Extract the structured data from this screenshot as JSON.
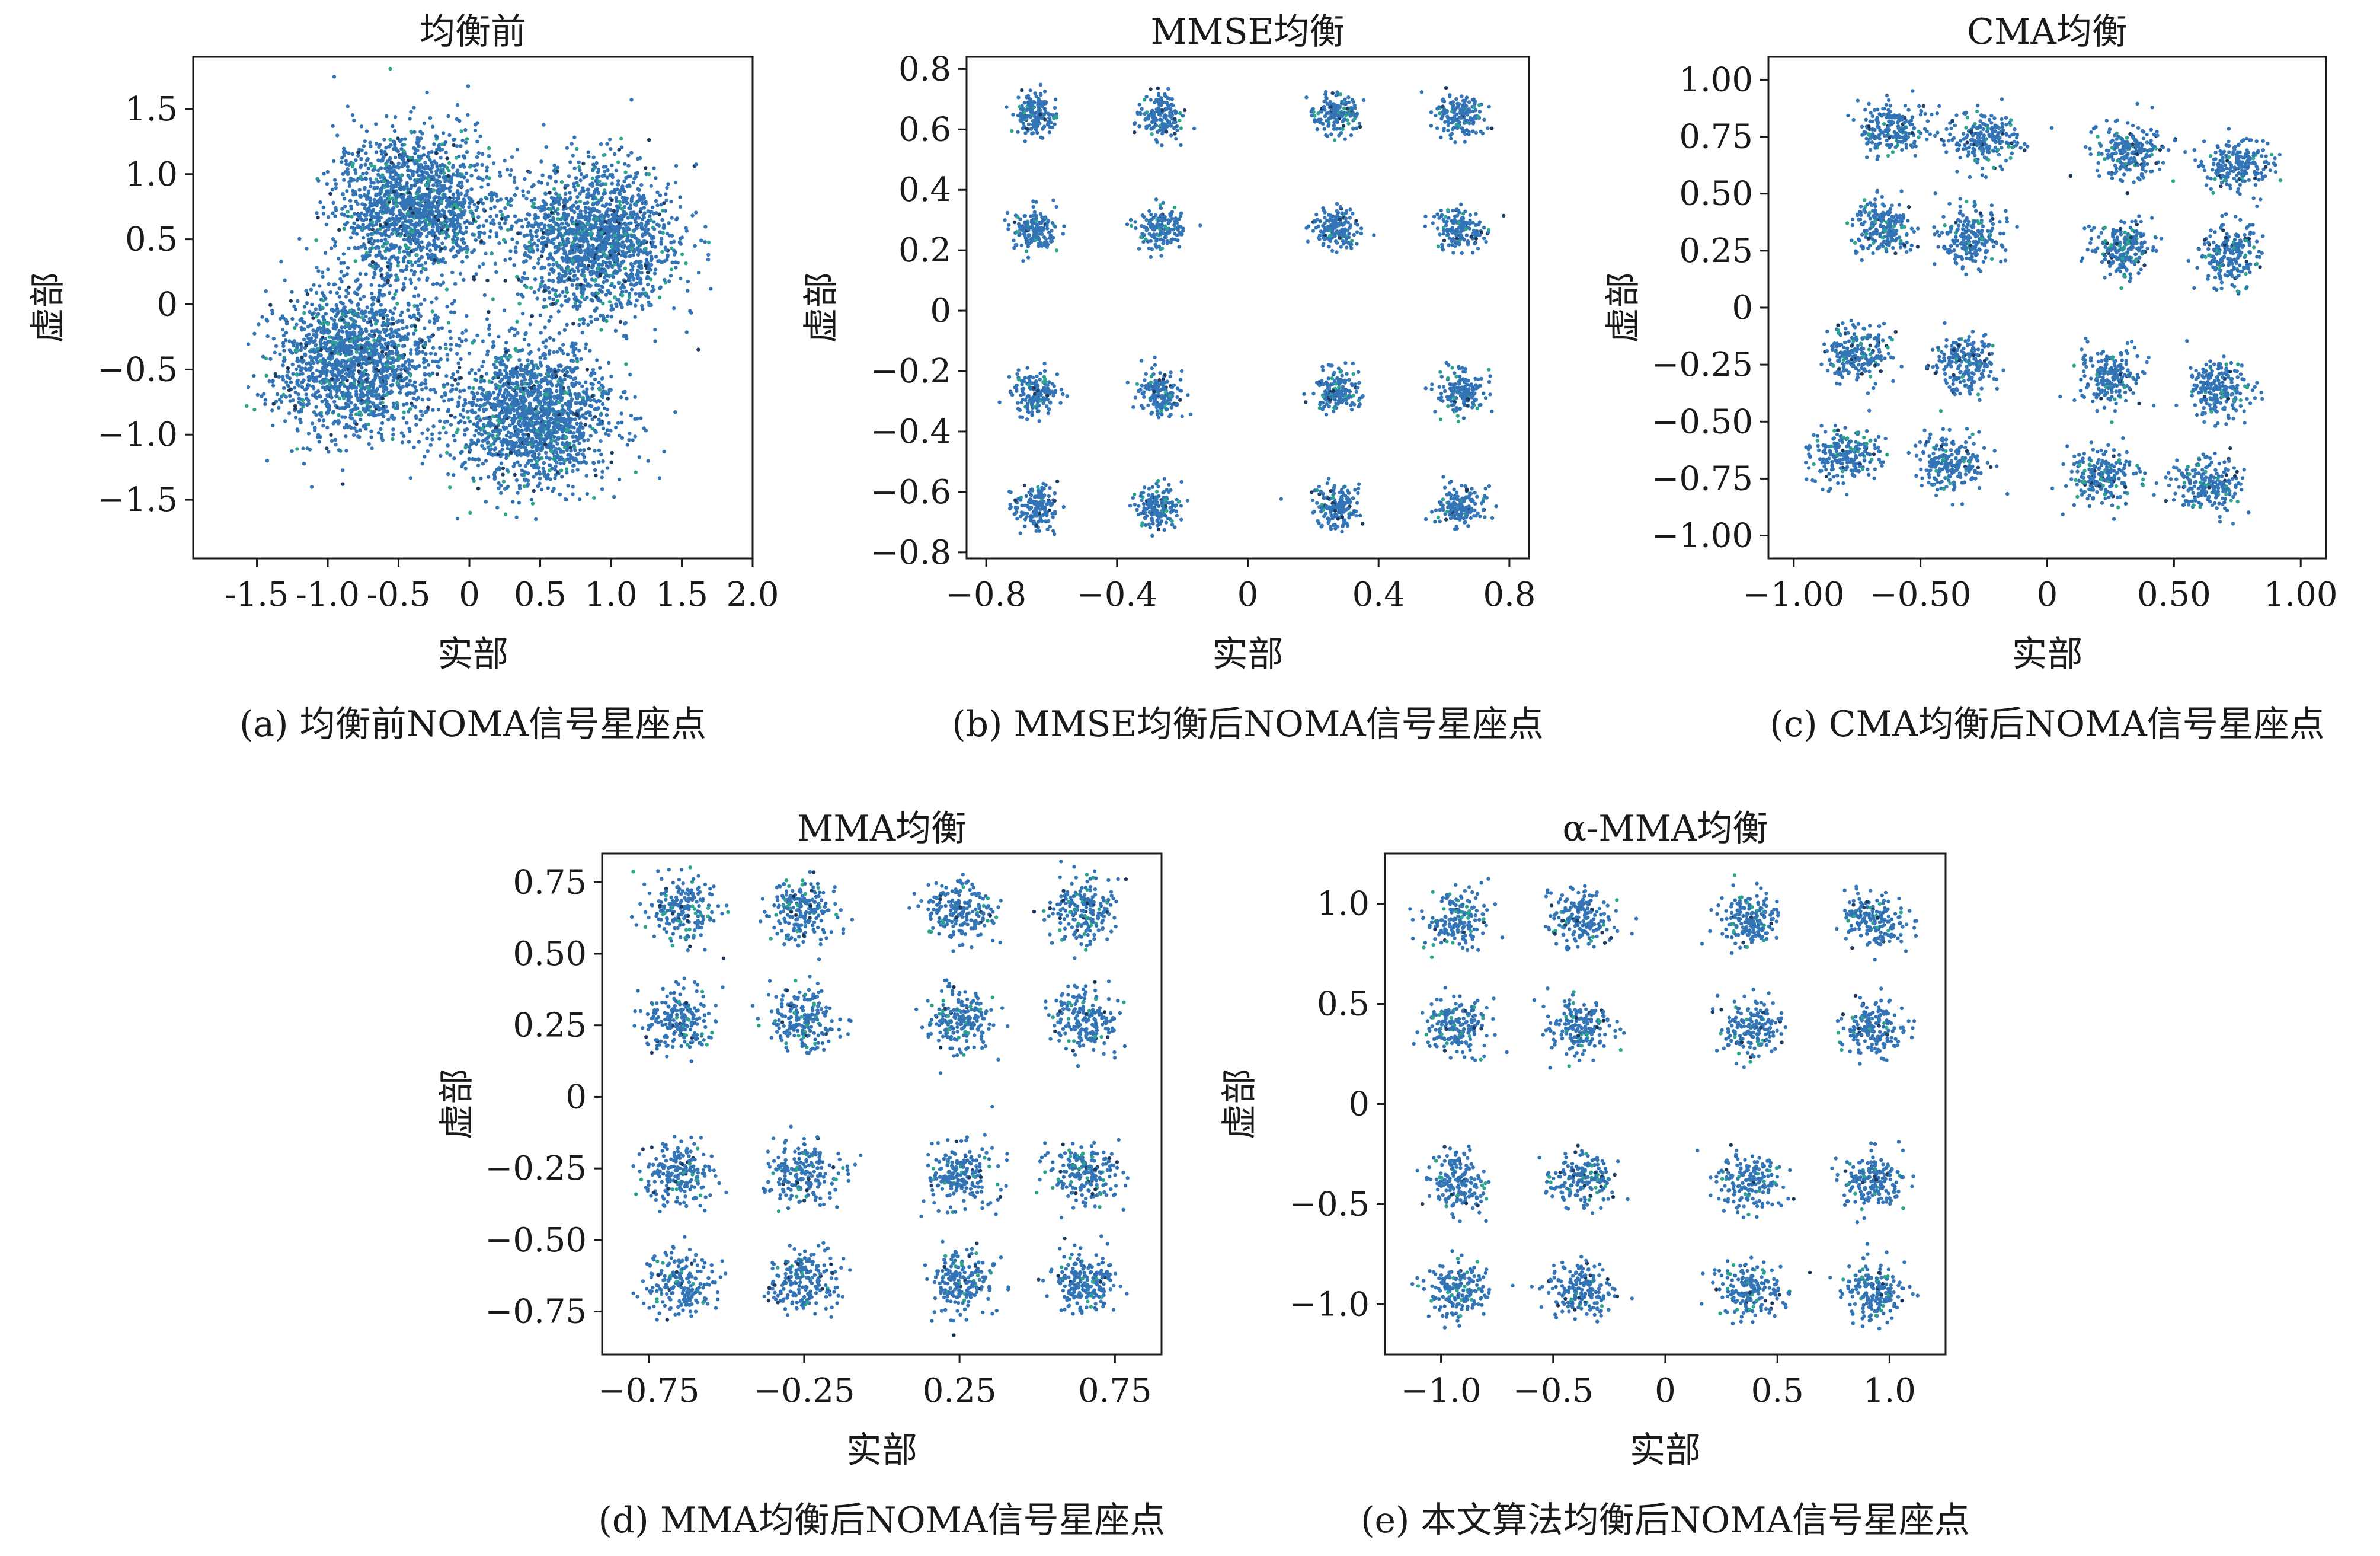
{
  "figure": {
    "colors": {
      "point_main": "#3274b5",
      "point_accent": "#2ca58d",
      "point_dark": "#1f3a5f",
      "axis": "#1a1a1a"
    },
    "panels": [
      {
        "id": "a",
        "title": "均衡前",
        "caption": "(a) 均衡前NOMA信号星座点",
        "xlabel": "实部",
        "ylabel": "虚部",
        "xticks": [
          {
            "v": -1.5,
            "label": "-1.5"
          },
          {
            "v": -1.0,
            "label": "-1.0"
          },
          {
            "v": -0.5,
            "label": "-0.5"
          },
          {
            "v": 0,
            "label": "0"
          },
          {
            "v": 0.5,
            "label": "0.5"
          },
          {
            "v": 1.0,
            "label": "1.0"
          },
          {
            "v": 1.5,
            "label": "1.5"
          },
          {
            "v": 2.0,
            "label": "2.0"
          }
        ],
        "yticks": [
          {
            "v": 1.5,
            "label": "1.5"
          },
          {
            "v": 1.0,
            "label": "1.0"
          },
          {
            "v": 0.5,
            "label": "0.5"
          },
          {
            "v": 0,
            "label": "0"
          },
          {
            "v": -0.5,
            "label": "−0.5"
          },
          {
            "v": -1.0,
            "label": "−1.0"
          },
          {
            "v": -1.5,
            "label": "−1.5"
          }
        ]
      },
      {
        "id": "b",
        "title": "MMSE均衡",
        "caption": "(b) MMSE均衡后NOMA信号星座点",
        "xlabel": "实部",
        "ylabel": "虚部",
        "xticks": [
          {
            "v": -0.8,
            "label": "−0.8"
          },
          {
            "v": -0.4,
            "label": "−0.4"
          },
          {
            "v": 0,
            "label": "0"
          },
          {
            "v": 0.4,
            "label": "0.4"
          },
          {
            "v": 0.8,
            "label": "0.8"
          }
        ],
        "yticks": [
          {
            "v": 0.8,
            "label": "0.8"
          },
          {
            "v": 0.6,
            "label": "0.6"
          },
          {
            "v": 0.4,
            "label": "0.4"
          },
          {
            "v": 0.2,
            "label": "0.2"
          },
          {
            "v": 0,
            "label": "0"
          },
          {
            "v": -0.2,
            "label": "−0.2"
          },
          {
            "v": -0.4,
            "label": "−0.4"
          },
          {
            "v": -0.6,
            "label": "−0.6"
          },
          {
            "v": -0.8,
            "label": "−0.8"
          }
        ]
      },
      {
        "id": "c",
        "title": "CMA均衡",
        "caption": "(c) CMA均衡后NOMA信号星座点",
        "xlabel": "实部",
        "ylabel": "虚部",
        "xticks": [
          {
            "v": -1.0,
            "label": "−1.00"
          },
          {
            "v": -0.5,
            "label": "−0.50"
          },
          {
            "v": 0,
            "label": "0"
          },
          {
            "v": 0.5,
            "label": "0.50"
          },
          {
            "v": 1.0,
            "label": "1.00"
          }
        ],
        "yticks": [
          {
            "v": 1.0,
            "label": "1.00"
          },
          {
            "v": 0.75,
            "label": "0.75"
          },
          {
            "v": 0.5,
            "label": "0.50"
          },
          {
            "v": 0.25,
            "label": "0.25"
          },
          {
            "v": 0,
            "label": "0"
          },
          {
            "v": -0.25,
            "label": "−0.25"
          },
          {
            "v": -0.5,
            "label": "−0.50"
          },
          {
            "v": -0.75,
            "label": "−0.75"
          },
          {
            "v": -1.0,
            "label": "−1.00"
          }
        ]
      },
      {
        "id": "d",
        "title": "MMA均衡",
        "caption": "(d) MMA均衡后NOMA信号星座点",
        "xlabel": "实部",
        "ylabel": "虚部",
        "xticks": [
          {
            "v": -0.75,
            "label": "−0.75"
          },
          {
            "v": -0.25,
            "label": "−0.25"
          },
          {
            "v": 0.25,
            "label": "0.25"
          },
          {
            "v": 0.75,
            "label": "0.75"
          }
        ],
        "yticks": [
          {
            "v": 0.75,
            "label": "0.75"
          },
          {
            "v": 0.5,
            "label": "0.50"
          },
          {
            "v": 0.25,
            "label": "0.25"
          },
          {
            "v": 0,
            "label": "0"
          },
          {
            "v": -0.25,
            "label": "−0.25"
          },
          {
            "v": -0.5,
            "label": "−0.50"
          },
          {
            "v": -0.75,
            "label": "−0.75"
          }
        ]
      },
      {
        "id": "e",
        "title": "α-MMA均衡",
        "caption": "(e) 本文算法均衡后NOMA信号星座点",
        "xlabel": "实部",
        "ylabel": "虚部",
        "xticks": [
          {
            "v": -1.0,
            "label": "−1.0"
          },
          {
            "v": -0.5,
            "label": "−0.5"
          },
          {
            "v": 0,
            "label": "0"
          },
          {
            "v": 0.5,
            "label": "0.5"
          },
          {
            "v": 1.0,
            "label": "1.0"
          }
        ],
        "yticks": [
          {
            "v": 1.0,
            "label": "1.0"
          },
          {
            "v": 0.5,
            "label": "0.5"
          },
          {
            "v": 0,
            "label": "0"
          },
          {
            "v": -0.5,
            "label": "−0.5"
          },
          {
            "v": -1.0,
            "label": "−1.0"
          }
        ]
      }
    ]
  },
  "chart_data": [
    {
      "type": "scatter",
      "title": "均衡前",
      "xlabel": "实部",
      "ylabel": "虚部",
      "xlim": [
        -1.95,
        2.0
      ],
      "ylim": [
        -1.95,
        1.9
      ],
      "grid": false,
      "series": [
        {
          "clusters": [
            {
              "x": -0.4,
              "y": 0.75,
              "sx": 0.28,
              "sy": 0.28,
              "n": 1600
            },
            {
              "x": 0.9,
              "y": 0.5,
              "sx": 0.28,
              "sy": 0.28,
              "n": 1600
            },
            {
              "x": -0.8,
              "y": -0.45,
              "sx": 0.28,
              "sy": 0.28,
              "n": 1600
            },
            {
              "x": 0.45,
              "y": -0.85,
              "sx": 0.28,
              "sy": 0.28,
              "n": 1600
            }
          ]
        }
      ]
    },
    {
      "type": "scatter",
      "title": "MMSE均衡",
      "xlabel": "实部",
      "ylabel": "虚部",
      "xlim": [
        -0.86,
        0.86
      ],
      "ylim": [
        -0.82,
        0.84
      ],
      "grid": false,
      "series": [
        {
          "clusters": [
            {
              "x": -0.65,
              "y": 0.65,
              "sx": 0.035,
              "sy": 0.035,
              "n": 160
            },
            {
              "x": -0.27,
              "y": 0.65,
              "sx": 0.035,
              "sy": 0.035,
              "n": 160
            },
            {
              "x": 0.27,
              "y": 0.65,
              "sx": 0.035,
              "sy": 0.035,
              "n": 160
            },
            {
              "x": 0.65,
              "y": 0.65,
              "sx": 0.035,
              "sy": 0.035,
              "n": 160
            },
            {
              "x": -0.65,
              "y": 0.27,
              "sx": 0.035,
              "sy": 0.035,
              "n": 160
            },
            {
              "x": -0.27,
              "y": 0.27,
              "sx": 0.035,
              "sy": 0.035,
              "n": 160
            },
            {
              "x": 0.27,
              "y": 0.27,
              "sx": 0.035,
              "sy": 0.035,
              "n": 160
            },
            {
              "x": 0.65,
              "y": 0.27,
              "sx": 0.035,
              "sy": 0.035,
              "n": 160
            },
            {
              "x": -0.65,
              "y": -0.27,
              "sx": 0.035,
              "sy": 0.035,
              "n": 160
            },
            {
              "x": -0.27,
              "y": -0.27,
              "sx": 0.035,
              "sy": 0.035,
              "n": 160
            },
            {
              "x": 0.27,
              "y": -0.27,
              "sx": 0.035,
              "sy": 0.035,
              "n": 160
            },
            {
              "x": 0.65,
              "y": -0.27,
              "sx": 0.035,
              "sy": 0.035,
              "n": 160
            },
            {
              "x": -0.65,
              "y": -0.65,
              "sx": 0.035,
              "sy": 0.035,
              "n": 160
            },
            {
              "x": -0.27,
              "y": -0.65,
              "sx": 0.035,
              "sy": 0.035,
              "n": 160
            },
            {
              "x": 0.27,
              "y": -0.65,
              "sx": 0.035,
              "sy": 0.035,
              "n": 160
            },
            {
              "x": 0.65,
              "y": -0.65,
              "sx": 0.035,
              "sy": 0.035,
              "n": 160
            }
          ]
        }
      ]
    },
    {
      "type": "scatter",
      "title": "CMA均衡",
      "xlabel": "实部",
      "ylabel": "虚部",
      "xlim": [
        -1.1,
        1.1
      ],
      "ylim": [
        -1.1,
        1.1
      ],
      "grid": false,
      "series": [
        {
          "clusters": [
            {
              "x": -0.6,
              "y": 0.78,
              "sx": 0.07,
              "sy": 0.06,
              "n": 210
            },
            {
              "x": -0.25,
              "y": 0.74,
              "sx": 0.07,
              "sy": 0.06,
              "n": 210
            },
            {
              "x": 0.33,
              "y": 0.68,
              "sx": 0.07,
              "sy": 0.06,
              "n": 210
            },
            {
              "x": 0.75,
              "y": 0.63,
              "sx": 0.07,
              "sy": 0.06,
              "n": 210
            },
            {
              "x": -0.65,
              "y": 0.35,
              "sx": 0.06,
              "sy": 0.06,
              "n": 210
            },
            {
              "x": -0.3,
              "y": 0.31,
              "sx": 0.06,
              "sy": 0.06,
              "n": 210
            },
            {
              "x": 0.3,
              "y": 0.26,
              "sx": 0.06,
              "sy": 0.06,
              "n": 210
            },
            {
              "x": 0.72,
              "y": 0.23,
              "sx": 0.06,
              "sy": 0.07,
              "n": 210
            },
            {
              "x": -0.75,
              "y": -0.2,
              "sx": 0.06,
              "sy": 0.07,
              "n": 210
            },
            {
              "x": -0.33,
              "y": -0.25,
              "sx": 0.06,
              "sy": 0.06,
              "n": 210
            },
            {
              "x": 0.25,
              "y": -0.3,
              "sx": 0.06,
              "sy": 0.06,
              "n": 210
            },
            {
              "x": 0.67,
              "y": -0.36,
              "sx": 0.06,
              "sy": 0.06,
              "n": 210
            },
            {
              "x": -0.8,
              "y": -0.65,
              "sx": 0.07,
              "sy": 0.06,
              "n": 210
            },
            {
              "x": -0.38,
              "y": -0.68,
              "sx": 0.07,
              "sy": 0.06,
              "n": 210
            },
            {
              "x": 0.22,
              "y": -0.74,
              "sx": 0.07,
              "sy": 0.06,
              "n": 210
            },
            {
              "x": 0.63,
              "y": -0.78,
              "sx": 0.07,
              "sy": 0.06,
              "n": 210
            }
          ]
        }
      ]
    },
    {
      "type": "scatter",
      "title": "MMA均衡",
      "xlabel": "实部",
      "ylabel": "虚部",
      "xlim": [
        -0.9,
        0.9
      ],
      "ylim": [
        -0.9,
        0.85
      ],
      "grid": false,
      "series": [
        {
          "clusters": [
            {
              "x": -0.65,
              "y": 0.65,
              "sx": 0.055,
              "sy": 0.055,
              "n": 200
            },
            {
              "x": -0.25,
              "y": 0.65,
              "sx": 0.055,
              "sy": 0.055,
              "n": 200
            },
            {
              "x": 0.25,
              "y": 0.65,
              "sx": 0.055,
              "sy": 0.055,
              "n": 200
            },
            {
              "x": 0.65,
              "y": 0.65,
              "sx": 0.055,
              "sy": 0.055,
              "n": 200
            },
            {
              "x": -0.65,
              "y": 0.27,
              "sx": 0.055,
              "sy": 0.055,
              "n": 200
            },
            {
              "x": -0.25,
              "y": 0.27,
              "sx": 0.055,
              "sy": 0.055,
              "n": 200
            },
            {
              "x": 0.25,
              "y": 0.27,
              "sx": 0.055,
              "sy": 0.055,
              "n": 200
            },
            {
              "x": 0.65,
              "y": 0.27,
              "sx": 0.055,
              "sy": 0.055,
              "n": 200
            },
            {
              "x": -0.65,
              "y": -0.27,
              "sx": 0.055,
              "sy": 0.055,
              "n": 200
            },
            {
              "x": -0.25,
              "y": -0.27,
              "sx": 0.055,
              "sy": 0.055,
              "n": 200
            },
            {
              "x": 0.25,
              "y": -0.27,
              "sx": 0.055,
              "sy": 0.055,
              "n": 200
            },
            {
              "x": 0.65,
              "y": -0.27,
              "sx": 0.055,
              "sy": 0.055,
              "n": 200
            },
            {
              "x": -0.65,
              "y": -0.65,
              "sx": 0.055,
              "sy": 0.055,
              "n": 200
            },
            {
              "x": -0.25,
              "y": -0.65,
              "sx": 0.055,
              "sy": 0.055,
              "n": 200
            },
            {
              "x": 0.25,
              "y": -0.65,
              "sx": 0.055,
              "sy": 0.055,
              "n": 200
            },
            {
              "x": 0.65,
              "y": -0.65,
              "sx": 0.055,
              "sy": 0.055,
              "n": 200
            }
          ]
        }
      ]
    },
    {
      "type": "scatter",
      "title": "α-MMA均衡",
      "xlabel": "实部",
      "ylabel": "虚部",
      "xlim": [
        -1.25,
        1.25
      ],
      "ylim": [
        -1.25,
        1.25
      ],
      "grid": false,
      "series": [
        {
          "clusters": [
            {
              "x": -0.93,
              "y": 0.92,
              "sx": 0.07,
              "sy": 0.07,
              "n": 180
            },
            {
              "x": -0.38,
              "y": 0.92,
              "sx": 0.07,
              "sy": 0.07,
              "n": 180
            },
            {
              "x": 0.38,
              "y": 0.92,
              "sx": 0.07,
              "sy": 0.07,
              "n": 180
            },
            {
              "x": 0.93,
              "y": 0.92,
              "sx": 0.07,
              "sy": 0.07,
              "n": 180
            },
            {
              "x": -0.93,
              "y": 0.38,
              "sx": 0.07,
              "sy": 0.07,
              "n": 180
            },
            {
              "x": -0.38,
              "y": 0.38,
              "sx": 0.07,
              "sy": 0.07,
              "n": 180
            },
            {
              "x": 0.38,
              "y": 0.38,
              "sx": 0.07,
              "sy": 0.07,
              "n": 180
            },
            {
              "x": 0.93,
              "y": 0.38,
              "sx": 0.07,
              "sy": 0.07,
              "n": 180
            },
            {
              "x": -0.93,
              "y": -0.38,
              "sx": 0.07,
              "sy": 0.07,
              "n": 180
            },
            {
              "x": -0.38,
              "y": -0.38,
              "sx": 0.07,
              "sy": 0.07,
              "n": 180
            },
            {
              "x": 0.38,
              "y": -0.38,
              "sx": 0.07,
              "sy": 0.07,
              "n": 180
            },
            {
              "x": 0.93,
              "y": -0.38,
              "sx": 0.07,
              "sy": 0.07,
              "n": 180
            },
            {
              "x": -0.93,
              "y": -0.93,
              "sx": 0.07,
              "sy": 0.07,
              "n": 180
            },
            {
              "x": -0.38,
              "y": -0.93,
              "sx": 0.07,
              "sy": 0.07,
              "n": 180
            },
            {
              "x": 0.38,
              "y": -0.93,
              "sx": 0.07,
              "sy": 0.07,
              "n": 180
            },
            {
              "x": 0.93,
              "y": -0.93,
              "sx": 0.07,
              "sy": 0.07,
              "n": 180
            }
          ]
        }
      ]
    }
  ]
}
